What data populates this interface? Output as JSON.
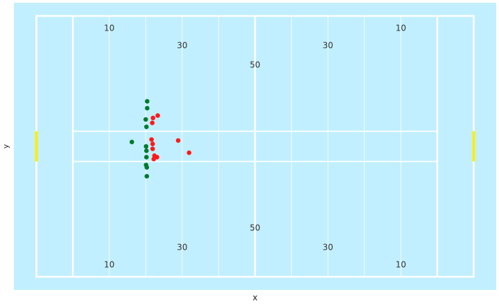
{
  "chart_data": {
    "type": "scatter",
    "xlabel": "x",
    "ylabel": "y",
    "xlim": [
      -10,
      110
    ],
    "ylim": [
      -26.65,
      26.65
    ],
    "grid": false,
    "yard_labels": [
      {
        "text": "10",
        "x": 10,
        "y": 24.15
      },
      {
        "text": "30",
        "x": 30,
        "y": 20.65
      },
      {
        "text": "50",
        "x": 50,
        "y": 16.65
      },
      {
        "text": "30",
        "x": 70,
        "y": 20.65
      },
      {
        "text": "10",
        "x": 90,
        "y": 24.15
      },
      {
        "text": "10",
        "x": 10,
        "y": -24.15
      },
      {
        "text": "30",
        "x": 30,
        "y": -20.65
      },
      {
        "text": "50",
        "x": 50,
        "y": -16.65
      },
      {
        "text": "30",
        "x": 70,
        "y": -20.65
      },
      {
        "text": "10",
        "x": 90,
        "y": -24.15
      }
    ],
    "series": [
      {
        "color": "#007a2c",
        "points": [
          {
            "x": 20.4,
            "y": 9.2
          },
          {
            "x": 20.4,
            "y": 7.8
          },
          {
            "x": 20.0,
            "y": 5.5
          },
          {
            "x": 20.2,
            "y": 4.0
          },
          {
            "x": 16.2,
            "y": 0.9
          },
          {
            "x": 20.1,
            "y": 0.0
          },
          {
            "x": 20.2,
            "y": -0.9
          },
          {
            "x": 20.2,
            "y": -2.2
          },
          {
            "x": 20.1,
            "y": -3.8
          },
          {
            "x": 20.3,
            "y": -4.3
          },
          {
            "x": 20.3,
            "y": -6.1
          }
        ]
      },
      {
        "color": "#ff1a1a",
        "points": [
          {
            "x": 23.3,
            "y": 6.3
          },
          {
            "x": 22.0,
            "y": 5.8
          },
          {
            "x": 21.8,
            "y": 4.8
          },
          {
            "x": 21.6,
            "y": 1.4
          },
          {
            "x": 21.9,
            "y": 0.5
          },
          {
            "x": 28.9,
            "y": 1.2
          },
          {
            "x": 21.9,
            "y": -0.5
          },
          {
            "x": 31.9,
            "y": -1.3
          },
          {
            "x": 22.4,
            "y": -1.9
          },
          {
            "x": 23.1,
            "y": -2.2
          },
          {
            "x": 22.2,
            "y": -2.6
          }
        ]
      }
    ]
  }
}
